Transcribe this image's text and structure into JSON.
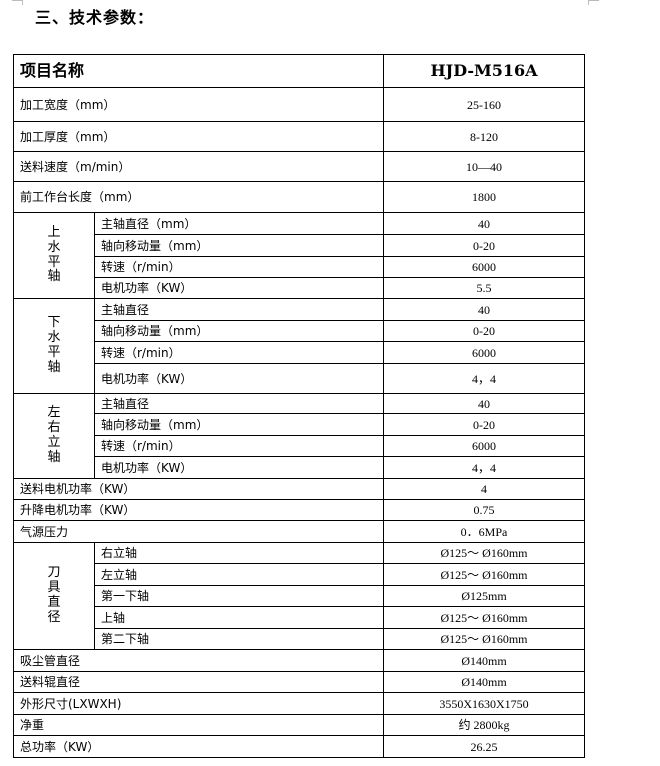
{
  "section_title": "三、技术参数：",
  "table": {
    "header": {
      "name": "项目名称",
      "value": "HJD-M516A"
    },
    "rows_top": [
      {
        "name": "加工宽度（mm）",
        "value": "25-160"
      },
      {
        "name": "加工厚度（mm）",
        "value": "8-120"
      },
      {
        "name": "送料速度（m/min）",
        "value": "10—40"
      },
      {
        "name": "前工作台长度（mm）",
        "value": "1800"
      }
    ],
    "groups": [
      {
        "label": "上水平轴",
        "items": [
          {
            "name": "主轴直径（mm）",
            "value": "40"
          },
          {
            "name": "轴向移动量（mm）",
            "value": "0-20"
          },
          {
            "name": "转速（r/min）",
            "value": "6000"
          },
          {
            "name": "电机功率（KW）",
            "value": "5.5"
          }
        ]
      },
      {
        "label": "下水平轴",
        "items": [
          {
            "name": "主轴直径",
            "value": "40"
          },
          {
            "name": "轴向移动量（mm）",
            "value": "0-20"
          },
          {
            "name": "转速（r/min）",
            "value": "6000"
          },
          {
            "name": "电机功率（KW）",
            "value": "4，4"
          }
        ]
      },
      {
        "label": "左右立轴",
        "items": [
          {
            "name": "主轴直径",
            "value": "40"
          },
          {
            "name": "轴向移动量（mm）",
            "value": "0-20"
          },
          {
            "name": "转速（r/min）",
            "value": "6000"
          },
          {
            "name": "电机功率（KW）",
            "value": "4，4"
          }
        ]
      }
    ],
    "rows_mid": [
      {
        "name": "送料电机功率（KW）",
        "value": "4"
      },
      {
        "name": "升降电机功率（KW）",
        "value": "0.75"
      },
      {
        "name": "气源压力",
        "value": "0．6MPa"
      }
    ],
    "tool_group": {
      "label": "刀具直径",
      "items": [
        {
          "name": "右立轴",
          "value": "Ø125～ Ø160mm"
        },
        {
          "name": "左立轴",
          "value": "Ø125～ Ø160mm"
        },
        {
          "name": "第一下轴",
          "value": "Ø125mm"
        },
        {
          "name": "上轴",
          "value": "Ø125～ Ø160mm"
        },
        {
          "name": "第二下轴",
          "value": "Ø125～ Ø160mm"
        }
      ]
    },
    "rows_bottom": [
      {
        "name": "吸尘管直径",
        "value": "Ø140mm"
      },
      {
        "name": "送料辊直径",
        "value": "Ø140mm"
      },
      {
        "name": "外形尺寸(LXWXH)",
        "value": "3550X1630X1750"
      },
      {
        "name": "净重",
        "value": "约 2800kg"
      },
      {
        "name": "总功率（KW）",
        "value": "26.25"
      }
    ]
  }
}
